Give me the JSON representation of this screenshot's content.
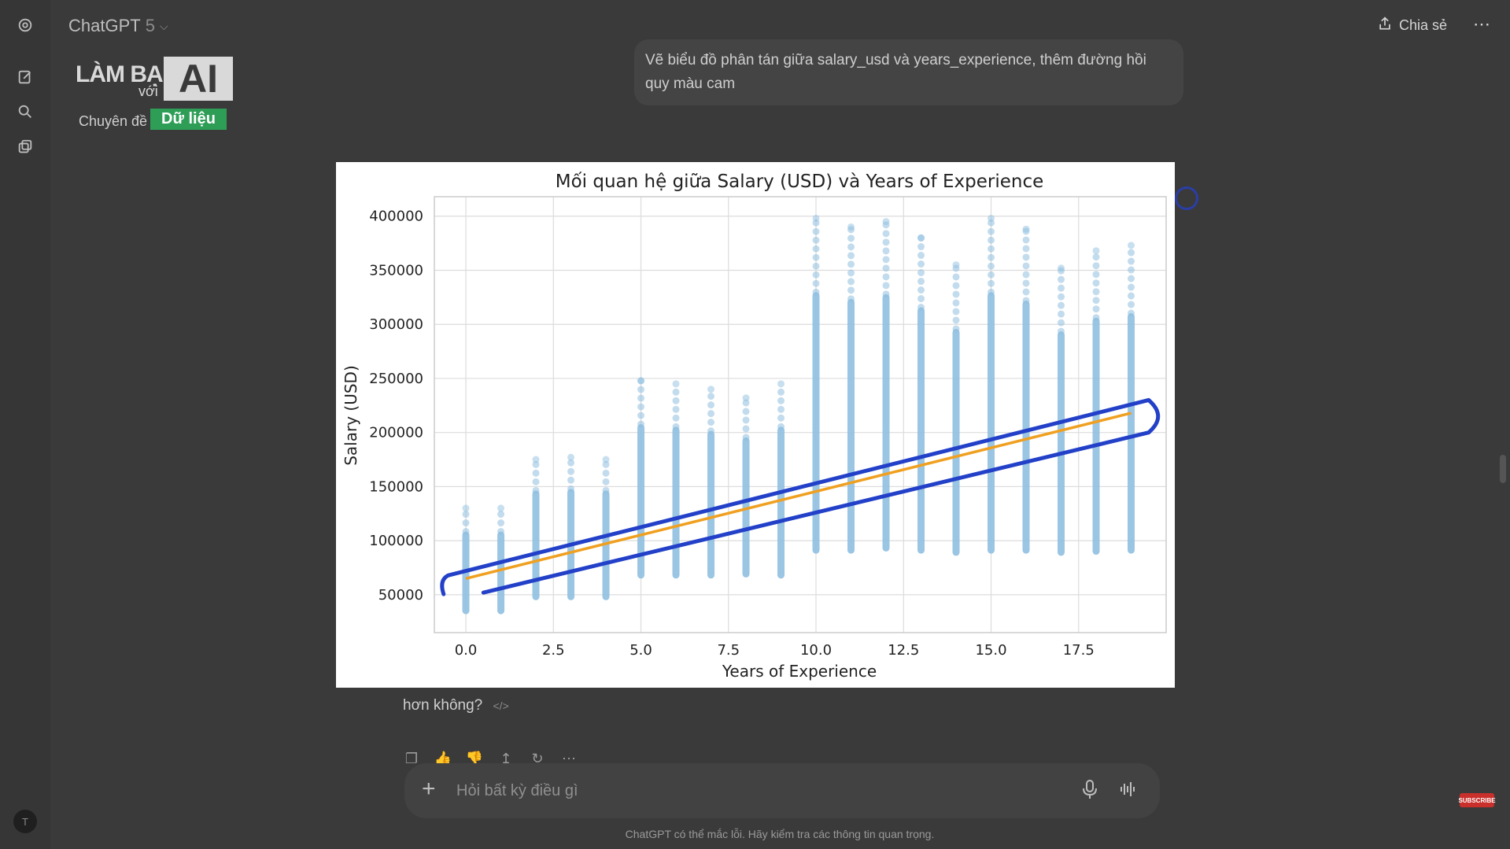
{
  "app": {
    "title": "ChatGPT",
    "version": "5",
    "share_label": "Chia sẻ",
    "more_label": "⋯"
  },
  "logo": {
    "line1": "LÀM BẠN",
    "line2": "với",
    "ai": "AI",
    "prefix": "Chuyên đề",
    "topic": "Dữ liệu"
  },
  "conversation": {
    "user_message": "Vẽ biểu đồ phân tán giữa salary_usd và years_experience, thêm đường hồi quy màu cam",
    "assistant_tail": "hơn không?"
  },
  "composer": {
    "placeholder": "Hỏi bất kỳ điều gì"
  },
  "footer": {
    "disclaimer": "ChatGPT có thể mắc lỗi. Hãy kiểm tra các thông tin quan trọng."
  },
  "avatar": {
    "initial": "T"
  },
  "subscribe_label": "SUBSCRIBE",
  "colors": {
    "page_bg": "#3a3a3a",
    "scatter": "#8fbfe0",
    "regression": "#f0a020",
    "annotation": "#2240c8",
    "brand_green": "#2e9e57"
  },
  "chart_data": {
    "type": "scatter",
    "title": "Mối quan hệ giữa Salary (USD) và Years of Experience",
    "xlabel": "Years of Experience",
    "ylabel": "Salary (USD)",
    "xlim": [
      -0.9,
      20
    ],
    "ylim": [
      15000,
      418000
    ],
    "xticks": [
      0,
      2.5,
      5,
      7.5,
      10,
      12.5,
      15,
      17.5
    ],
    "xtick_labels": [
      "0.0",
      "2.5",
      "5.0",
      "7.5",
      "10.0",
      "12.5",
      "15.0",
      "17.5"
    ],
    "yticks": [
      50000,
      100000,
      150000,
      200000,
      250000,
      300000,
      350000,
      400000
    ],
    "ytick_labels": [
      "50000",
      "100000",
      "150000",
      "200000",
      "250000",
      "300000",
      "350000",
      "400000"
    ],
    "grid": true,
    "series": [
      {
        "kind": "scatter_ranges",
        "color": "#8fbfe0",
        "columns": [
          {
            "x": 0,
            "min": 32000,
            "max": 130000
          },
          {
            "x": 1,
            "min": 32000,
            "max": 130000
          },
          {
            "x": 2,
            "min": 45000,
            "max": 175000
          },
          {
            "x": 3,
            "min": 45000,
            "max": 177000
          },
          {
            "x": 4,
            "min": 45000,
            "max": 175000
          },
          {
            "x": 5,
            "min": 65000,
            "max": 248000
          },
          {
            "x": 6,
            "min": 65000,
            "max": 245000
          },
          {
            "x": 7,
            "min": 65000,
            "max": 240000
          },
          {
            "x": 8,
            "min": 66000,
            "max": 232000
          },
          {
            "x": 9,
            "min": 65000,
            "max": 245000
          },
          {
            "x": 10,
            "min": 88000,
            "max": 398000
          },
          {
            "x": 11,
            "min": 88000,
            "max": 390000
          },
          {
            "x": 12,
            "min": 90000,
            "max": 395000
          },
          {
            "x": 13,
            "min": 88000,
            "max": 380000
          },
          {
            "x": 14,
            "min": 86000,
            "max": 355000
          },
          {
            "x": 15,
            "min": 88000,
            "max": 398000
          },
          {
            "x": 16,
            "min": 88000,
            "max": 388000
          },
          {
            "x": 17,
            "min": 86000,
            "max": 352000
          },
          {
            "x": 18,
            "min": 87000,
            "max": 368000
          },
          {
            "x": 19,
            "min": 88000,
            "max": 373000
          }
        ]
      },
      {
        "kind": "regression_line",
        "color": "#f0a020",
        "points": [
          [
            0,
            65000
          ],
          [
            19,
            218000
          ]
        ]
      }
    ],
    "annotation": {
      "kind": "highlight_outline",
      "color": "#2240c8",
      "upper": [
        [
          -0.5,
          68000
        ],
        [
          19.5,
          230000
        ]
      ],
      "lower": [
        [
          0.5,
          52000
        ],
        [
          19.5,
          200000
        ]
      ]
    }
  }
}
